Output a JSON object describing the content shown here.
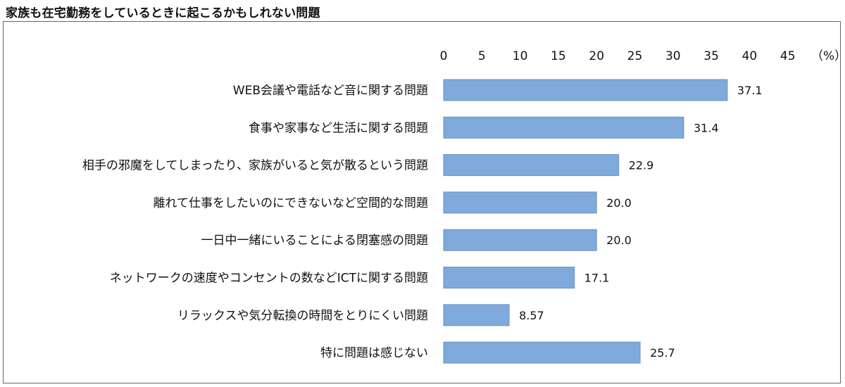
{
  "title": "家族も在宅勤務をしているときに起こるかもしれない問題",
  "chart_data": {
    "type": "bar",
    "orientation": "horizontal",
    "title": "家族も在宅勤務をしているときに起こるかもしれない問題",
    "unit_label": "（%）",
    "xlim": [
      0,
      45
    ],
    "ticks": [
      0,
      5,
      10,
      15,
      20,
      25,
      30,
      35,
      40,
      45
    ],
    "tick_labels": [
      "0",
      "5",
      "10",
      "15",
      "20",
      "25",
      "30",
      "35",
      "40",
      "45"
    ],
    "axis_position": "top",
    "grid": false,
    "bar_color": "#7FAADB",
    "categories": [
      "WEB会議や電話など音に関する問題",
      "食事や家事など生活に関する問題",
      "相手の邪魔をしてしまったり、家族がいると気が散るという問題",
      "離れて仕事をしたいのにできないなど空間的な問題",
      "一日中一緒にいることによる閉塞感の問題",
      "ネットワークの速度やコンセントの数などICTに関する問題",
      "リラックスや気分転換の時間をとりにくい問題",
      "特に問題は感じない"
    ],
    "values": [
      37.1,
      31.4,
      22.9,
      20.0,
      20.0,
      17.1,
      8.57,
      25.7
    ],
    "value_labels": [
      "37.1",
      "31.4",
      "22.9",
      "20.0",
      "20.0",
      "17.1",
      "8.57",
      "25.7"
    ]
  }
}
